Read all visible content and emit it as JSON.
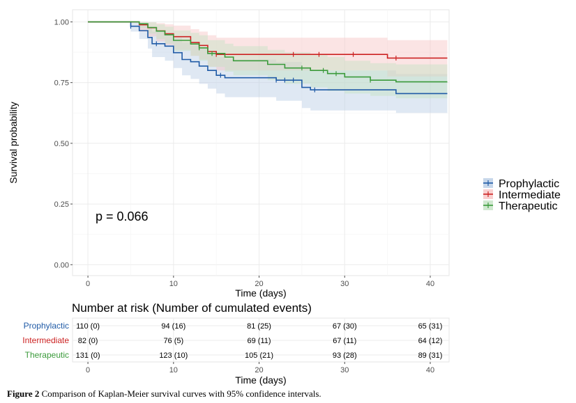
{
  "chart_data": {
    "type": "line",
    "subtype": "kaplan-meier step curves with 95% confidence bands",
    "xlabel": "Time (days)",
    "ylabel": "Survival probability",
    "xlim": [
      -1.8,
      42.2
    ],
    "ylim": [
      -0.045,
      1.05
    ],
    "xticks": [
      0,
      10,
      20,
      30,
      40
    ],
    "yticks": [
      0.0,
      0.25,
      0.5,
      0.75,
      1.0
    ],
    "ytick_labels": [
      "0.00",
      "0.25",
      "0.50",
      "0.75",
      "1.00"
    ],
    "grid": true,
    "pvalue_text": "p = 0.066",
    "legend_position": "right",
    "series": [
      {
        "name": "Prophylactic",
        "color": "#1f5aa6",
        "band_color": "#b9cde5",
        "steps": [
          [
            0,
            1.0
          ],
          [
            5,
            0.982
          ],
          [
            6,
            0.964
          ],
          [
            7,
            0.936
          ],
          [
            7.5,
            0.91
          ],
          [
            9,
            0.9
          ],
          [
            10,
            0.873
          ],
          [
            11,
            0.845
          ],
          [
            12,
            0.836
          ],
          [
            13,
            0.818
          ],
          [
            14,
            0.8
          ],
          [
            15,
            0.78
          ],
          [
            16,
            0.77
          ],
          [
            22,
            0.76
          ],
          [
            25,
            0.73
          ],
          [
            26,
            0.72
          ],
          [
            36,
            0.705
          ],
          [
            42,
            0.705
          ]
        ],
        "upper": [
          [
            0,
            1.0
          ],
          [
            5,
            0.999
          ],
          [
            6,
            0.995
          ],
          [
            7,
            0.98
          ],
          [
            7.5,
            0.96
          ],
          [
            9,
            0.955
          ],
          [
            10,
            0.935
          ],
          [
            11,
            0.915
          ],
          [
            12,
            0.905
          ],
          [
            13,
            0.89
          ],
          [
            14,
            0.87
          ],
          [
            15,
            0.855
          ],
          [
            16,
            0.845
          ],
          [
            22,
            0.835
          ],
          [
            25,
            0.81
          ],
          [
            26,
            0.8
          ],
          [
            36,
            0.785
          ],
          [
            42,
            0.785
          ]
        ],
        "lower": [
          [
            0,
            1.0
          ],
          [
            5,
            0.96
          ],
          [
            6,
            0.93
          ],
          [
            7,
            0.89
          ],
          [
            7.5,
            0.855
          ],
          [
            9,
            0.84
          ],
          [
            10,
            0.81
          ],
          [
            11,
            0.78
          ],
          [
            12,
            0.765
          ],
          [
            13,
            0.745
          ],
          [
            14,
            0.725
          ],
          [
            15,
            0.705
          ],
          [
            16,
            0.69
          ],
          [
            22,
            0.675
          ],
          [
            25,
            0.645
          ],
          [
            26,
            0.635
          ],
          [
            36,
            0.625
          ],
          [
            42,
            0.625
          ]
        ],
        "censor_times": [
          5,
          8,
          15.5,
          22,
          23,
          24,
          26.5
        ]
      },
      {
        "name": "Intermediate",
        "color": "#cc2222",
        "band_color": "#f7c4c4",
        "steps": [
          [
            0,
            1.0
          ],
          [
            6,
            0.988
          ],
          [
            7,
            0.976
          ],
          [
            8,
            0.963
          ],
          [
            9,
            0.951
          ],
          [
            10,
            0.939
          ],
          [
            12,
            0.915
          ],
          [
            13,
            0.903
          ],
          [
            14,
            0.878
          ],
          [
            15,
            0.866
          ],
          [
            28,
            0.866
          ],
          [
            35,
            0.851
          ],
          [
            42,
            0.851
          ]
        ],
        "upper": [
          [
            0,
            1.0
          ],
          [
            6,
            0.999
          ],
          [
            7,
            0.998
          ],
          [
            8,
            0.995
          ],
          [
            9,
            0.99
          ],
          [
            10,
            0.985
          ],
          [
            12,
            0.97
          ],
          [
            13,
            0.96
          ],
          [
            14,
            0.945
          ],
          [
            15,
            0.935
          ],
          [
            28,
            0.935
          ],
          [
            35,
            0.925
          ],
          [
            42,
            0.925
          ]
        ],
        "lower": [
          [
            0,
            1.0
          ],
          [
            6,
            0.96
          ],
          [
            7,
            0.94
          ],
          [
            8,
            0.92
          ],
          [
            9,
            0.905
          ],
          [
            10,
            0.885
          ],
          [
            12,
            0.86
          ],
          [
            13,
            0.845
          ],
          [
            14,
            0.815
          ],
          [
            15,
            0.8
          ],
          [
            28,
            0.8
          ],
          [
            35,
            0.775
          ],
          [
            42,
            0.775
          ]
        ],
        "censor_times": [
          15,
          24,
          27,
          31,
          36
        ]
      },
      {
        "name": "Therapeutic",
        "color": "#3a9a3a",
        "band_color": "#c4e2c4",
        "steps": [
          [
            0,
            1.0
          ],
          [
            6,
            0.992
          ],
          [
            7,
            0.977
          ],
          [
            8,
            0.962
          ],
          [
            9,
            0.947
          ],
          [
            10,
            0.924
          ],
          [
            12,
            0.909
          ],
          [
            13,
            0.893
          ],
          [
            14,
            0.87
          ],
          [
            16,
            0.855
          ],
          [
            17,
            0.84
          ],
          [
            21,
            0.825
          ],
          [
            23,
            0.81
          ],
          [
            26,
            0.8
          ],
          [
            28,
            0.787
          ],
          [
            30,
            0.773
          ],
          [
            33,
            0.76
          ],
          [
            36,
            0.753
          ],
          [
            42,
            0.753
          ]
        ],
        "upper": [
          [
            0,
            1.0
          ],
          [
            6,
            1.0
          ],
          [
            7,
            0.998
          ],
          [
            8,
            0.99
          ],
          [
            9,
            0.98
          ],
          [
            10,
            0.965
          ],
          [
            12,
            0.955
          ],
          [
            13,
            0.945
          ],
          [
            14,
            0.925
          ],
          [
            16,
            0.91
          ],
          [
            17,
            0.9
          ],
          [
            21,
            0.885
          ],
          [
            23,
            0.875
          ],
          [
            26,
            0.865
          ],
          [
            28,
            0.855
          ],
          [
            30,
            0.84
          ],
          [
            33,
            0.83
          ],
          [
            36,
            0.825
          ],
          [
            42,
            0.825
          ]
        ],
        "lower": [
          [
            0,
            1.0
          ],
          [
            6,
            0.975
          ],
          [
            7,
            0.952
          ],
          [
            8,
            0.93
          ],
          [
            9,
            0.91
          ],
          [
            10,
            0.88
          ],
          [
            12,
            0.86
          ],
          [
            13,
            0.84
          ],
          [
            14,
            0.815
          ],
          [
            16,
            0.795
          ],
          [
            17,
            0.78
          ],
          [
            21,
            0.76
          ],
          [
            23,
            0.745
          ],
          [
            26,
            0.73
          ],
          [
            28,
            0.715
          ],
          [
            30,
            0.705
          ],
          [
            33,
            0.695
          ],
          [
            36,
            0.685
          ],
          [
            42,
            0.685
          ]
        ],
        "censor_times": [
          13,
          14.5,
          25,
          27.5,
          29,
          33
        ]
      }
    ],
    "risk_table": {
      "title": "Number at risk (Number of cumulated events)",
      "xlabel": "Time (days)",
      "times": [
        0,
        10,
        20,
        30,
        40
      ],
      "rows": [
        {
          "name": "Prophylactic",
          "color": "#1f5aa6",
          "values": [
            "110 (0)",
            "94 (16)",
            "81 (25)",
            "67 (30)",
            "65 (31)"
          ]
        },
        {
          "name": "Intermediate",
          "color": "#cc2222",
          "values": [
            "82 (0)",
            "76 (5)",
            "69 (11)",
            "67 (11)",
            "64 (12)"
          ]
        },
        {
          "name": "Therapeutic",
          "color": "#3a9a3a",
          "values": [
            "131 (0)",
            "123 (10)",
            "105 (21)",
            "93 (28)",
            "89 (31)"
          ]
        }
      ]
    }
  },
  "caption": {
    "label": "Figure 2",
    "text": " Comparison of Kaplan-Meier survival curves with 95% confidence intervals."
  }
}
